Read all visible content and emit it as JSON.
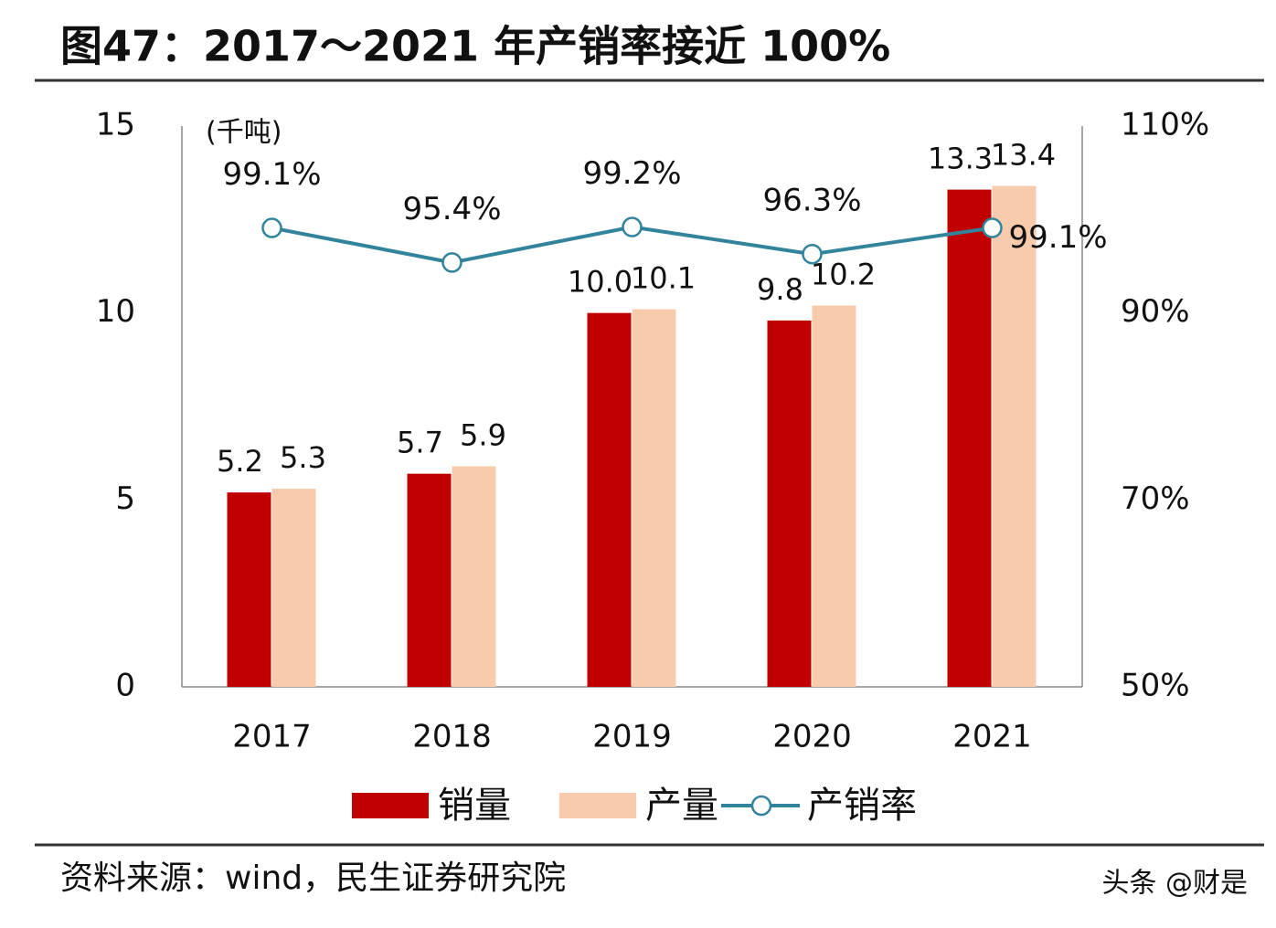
{
  "chart_data": {
    "type": "bar",
    "title": "图47：2017～2021 年产销率接近 100%",
    "unit_label": "(千吨)",
    "categories": [
      "2017",
      "2018",
      "2019",
      "2020",
      "2021"
    ],
    "series": [
      {
        "name": "销量",
        "color": "#c00000",
        "values": [
          5.2,
          5.7,
          10.0,
          9.8,
          13.3
        ],
        "value_labels": [
          "5.2",
          "5.7",
          "10.0",
          "9.8",
          "13.3"
        ]
      },
      {
        "name": "产量",
        "color": "#f8cbad",
        "values": [
          5.3,
          5.9,
          10.1,
          10.2,
          13.4
        ]
      },
      {
        "name": "产销率",
        "type": "line",
        "axis": "y2",
        "color": "#31849b",
        "values": [
          99.1,
          95.4,
          99.2,
          96.3,
          99.1
        ],
        "value_labels": [
          "99.1%",
          "95.4%",
          "99.2%",
          "96.3%",
          "99.1%"
        ]
      }
    ],
    "ylim": [
      0,
      15
    ],
    "yticks": [
      0,
      5,
      10,
      15
    ],
    "y2lim": [
      50,
      110
    ],
    "y2ticks": [
      {
        "value": 50,
        "label": "50%"
      },
      {
        "value": 70,
        "label": "70%"
      },
      {
        "value": 90,
        "label": "90%"
      },
      {
        "value": 110,
        "label": "110%"
      }
    ]
  },
  "source": "资料来源：wind，民生证券研究院",
  "watermark": "头条 @财是"
}
